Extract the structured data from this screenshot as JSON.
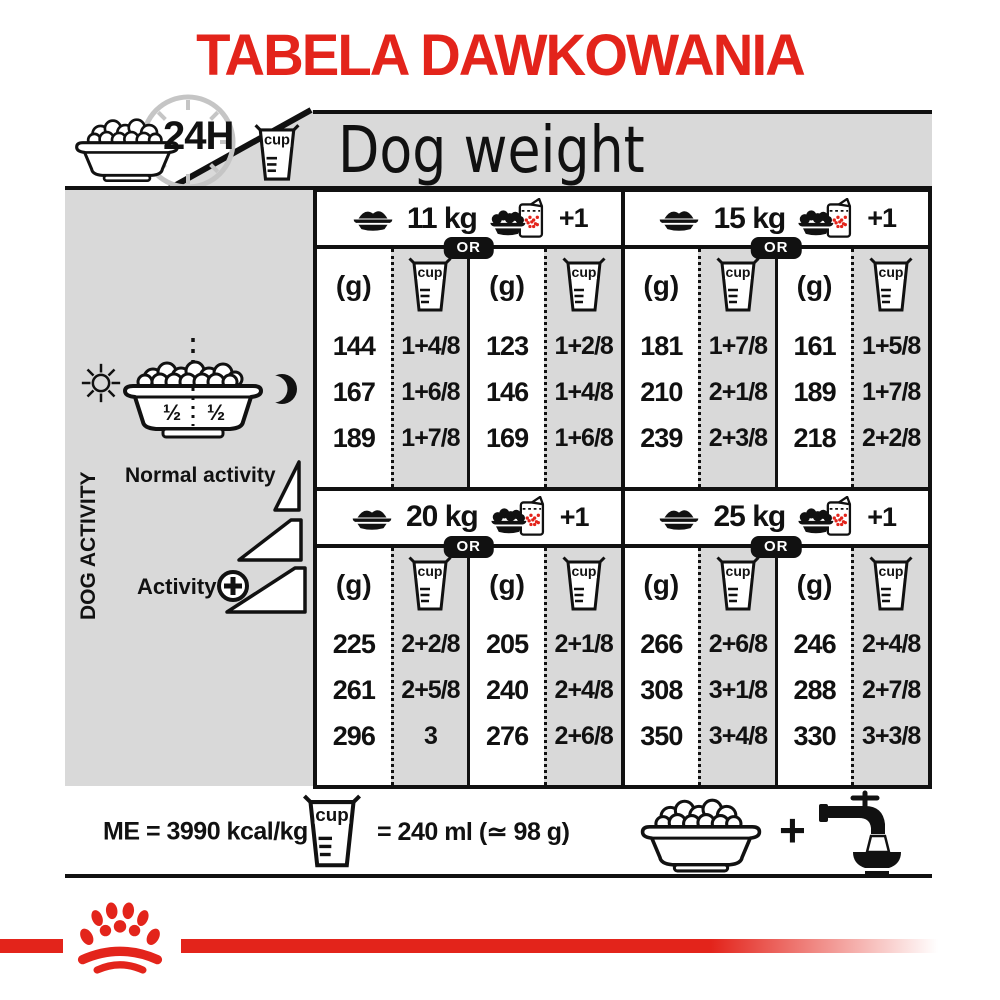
{
  "title": "TABELA DAWKOWANIA",
  "header": {
    "duration_label": "24H",
    "dog_weight_label": "Dog weight"
  },
  "sidebar": {
    "dog_activity_label": "DOG ACTIVITY",
    "half_label": "½",
    "normal_activity_label": "Normal activity",
    "activity_label": "Activity"
  },
  "table": {
    "or_label": "OR",
    "grams_header": "(g)",
    "cup_header": "cup",
    "plus_one_label": "+1",
    "sections": [
      {
        "weight": "11 kg",
        "columns": [
          {
            "grams": [
              "144",
              "167",
              "189"
            ],
            "cups": [
              "1+4/8",
              "1+6/8",
              "1+7/8"
            ]
          },
          {
            "grams": [
              "123",
              "146",
              "169"
            ],
            "cups": [
              "1+2/8",
              "1+4/8",
              "1+6/8"
            ]
          }
        ]
      },
      {
        "weight": "15 kg",
        "columns": [
          {
            "grams": [
              "181",
              "210",
              "239"
            ],
            "cups": [
              "1+7/8",
              "2+1/8",
              "2+3/8"
            ]
          },
          {
            "grams": [
              "161",
              "189",
              "218"
            ],
            "cups": [
              "1+5/8",
              "1+7/8",
              "2+2/8"
            ]
          }
        ]
      },
      {
        "weight": "20 kg",
        "columns": [
          {
            "grams": [
              "225",
              "261",
              "296"
            ],
            "cups": [
              "2+2/8",
              "2+5/8",
              "3"
            ]
          },
          {
            "grams": [
              "205",
              "240",
              "276"
            ],
            "cups": [
              "2+1/8",
              "2+4/8",
              "2+6/8"
            ]
          }
        ]
      },
      {
        "weight": "25 kg",
        "columns": [
          {
            "grams": [
              "266",
              "308",
              "350"
            ],
            "cups": [
              "2+6/8",
              "3+1/8",
              "3+4/8"
            ]
          },
          {
            "grams": [
              "246",
              "288",
              "330"
            ],
            "cups": [
              "2+4/8",
              "2+7/8",
              "3+3/8"
            ]
          }
        ]
      }
    ]
  },
  "footer": {
    "me_label": "ME = 3990 kcal/kg",
    "cup_label": "cup",
    "cup_equiv_label": "= 240 ml (≃ 98 g)",
    "plus_label": "+"
  },
  "colors": {
    "accent_red": "#e3241b",
    "panel_gray": "#d9d9d9",
    "line_black": "#111111"
  },
  "icons": [
    "clock-24h-icon",
    "food-bowl-icon",
    "measuring-cup-icon",
    "bowl-and-kibble-bag-icon",
    "sun-icon",
    "moon-icon",
    "half-portion-bowl-icon",
    "activity-ramp-icon",
    "plus-circle-icon",
    "water-tap-icon",
    "paw-crown-logo"
  ]
}
